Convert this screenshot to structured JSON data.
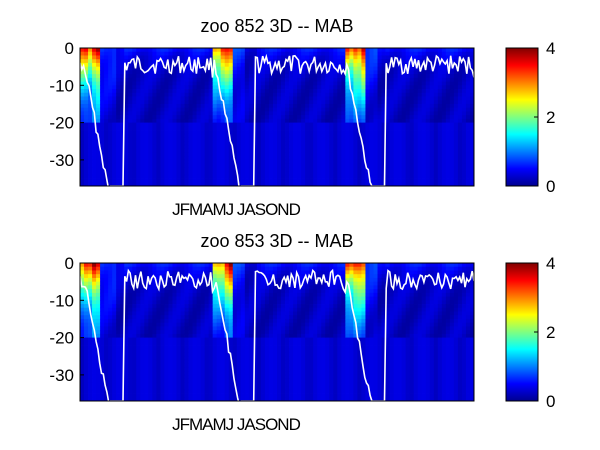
{
  "chart_data": [
    {
      "type": "heatmap",
      "title": "zoo  852 3D   -- MAB",
      "xlabel": "JFMAMJ JASOND",
      "ylabel": "",
      "yticks": [
        "0",
        "-10",
        "-20",
        "-30"
      ],
      "ytick_values": [
        0,
        -10,
        -20,
        -30
      ],
      "ylim": [
        -37,
        0
      ],
      "colorbar": {
        "ticks": [
          "0",
          "2",
          "4"
        ],
        "tick_values": [
          0,
          2,
          4
        ],
        "range": [
          0,
          4
        ]
      },
      "colormap": "jet",
      "grid": false,
      "years": 3,
      "mld_contour_color": "#ffffff"
    },
    {
      "type": "heatmap",
      "title": "zoo  853 3D   -- MAB",
      "xlabel": "JFMAMJ JASOND",
      "ylabel": "",
      "yticks": [
        "0",
        "-10",
        "-20",
        "-30"
      ],
      "ytick_values": [
        0,
        -10,
        -20,
        -30
      ],
      "ylim": [
        -37,
        0
      ],
      "colorbar": {
        "ticks": [
          "0",
          "2",
          "4"
        ],
        "tick_values": [
          0,
          2,
          4
        ],
        "range": [
          0,
          4
        ]
      },
      "colormap": "jet",
      "grid": false,
      "years": 3,
      "mld_contour_color": "#ffffff"
    }
  ]
}
